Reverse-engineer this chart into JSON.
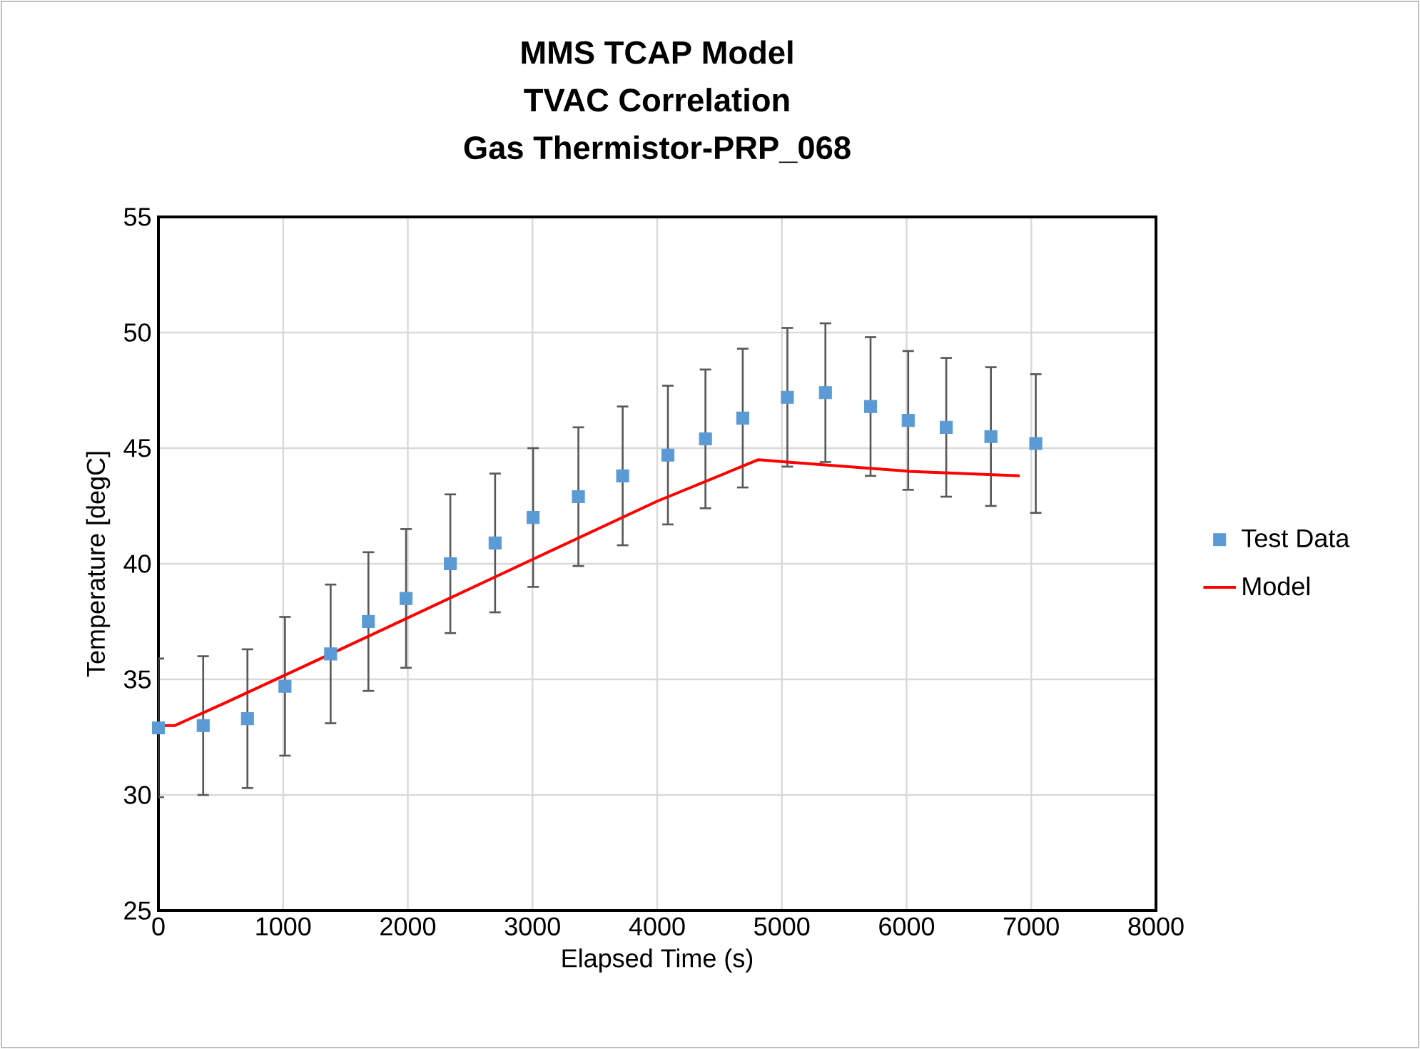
{
  "chart_data": {
    "type": "scatter",
    "title": "MMS TCAP Model\nTVAC Correlation\nGas Thermistor-PRP_068",
    "xlabel": "Elapsed Time (s)",
    "ylabel": "Temperature  [degC]",
    "xlim": [
      0,
      8000
    ],
    "xticks": [
      0,
      1000,
      2000,
      3000,
      4000,
      5000,
      6000,
      7000,
      8000
    ],
    "ylim": [
      25,
      55
    ],
    "yticks": [
      25,
      30,
      35,
      40,
      45,
      50,
      55
    ],
    "grid": true,
    "legend": "right",
    "series": [
      {
        "name": "Test Data",
        "marker": "square",
        "color": "#5b9bd5",
        "x": [
          0,
          359,
          714,
          1015,
          1381,
          1684,
          1986,
          2341,
          2700,
          3005,
          3368,
          3723,
          4086,
          4387,
          4686,
          5044,
          5349,
          5711,
          6013,
          6318,
          6676,
          7036
        ],
        "values": [
          32.9,
          33.0,
          33.3,
          34.7,
          36.1,
          37.5,
          38.5,
          40.0,
          40.9,
          42.0,
          42.9,
          43.8,
          44.7,
          45.4,
          46.3,
          47.2,
          47.4,
          46.8,
          46.2,
          45.9,
          45.5,
          45.2
        ],
        "errors": [
          3,
          3,
          3,
          3,
          3,
          3,
          3,
          3,
          3,
          3,
          3,
          3,
          3,
          3,
          3,
          3,
          3,
          3,
          3,
          3,
          3,
          3
        ]
      },
      {
        "name": "Model",
        "type": "line",
        "marker": "none",
        "line_style": "solid",
        "color": "#ff0000",
        "x": [
          0,
          130,
          542,
          1381,
          3005,
          3998,
          4811,
          5044,
          6013,
          6907
        ],
        "values": [
          33.0,
          33.0,
          34.0,
          36.1,
          40.2,
          42.7,
          44.5,
          44.4,
          44.0,
          43.8
        ]
      }
    ]
  }
}
